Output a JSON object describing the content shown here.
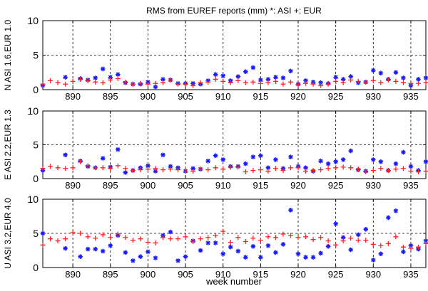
{
  "chart_data": [
    {
      "type": "scatter",
      "title": "RMS  from  EUREF reports (mm)    *: ASI  +: EUR",
      "ylabel": "N  ASI 1.6,EUR 1.0",
      "xlabel": "",
      "xlim": [
        886,
        937
      ],
      "ylim": [
        0,
        10
      ],
      "grid": "dashed",
      "xticks": [
        "890",
        "895",
        "900",
        "905",
        "910",
        "915",
        "920",
        "925",
        "930",
        "935"
      ],
      "yticks": [
        "0",
        "5",
        "10"
      ],
      "series": [
        {
          "name": "ASI",
          "marker": "*",
          "color": "#1a1aff",
          "x": [
            886,
            889,
            891,
            892,
            893,
            894,
            895,
            896,
            897,
            898,
            899,
            900,
            901,
            902,
            903,
            904,
            905,
            906,
            907,
            908,
            909,
            910,
            911,
            912,
            913,
            914,
            915,
            916,
            917,
            918,
            919,
            920,
            921,
            922,
            923,
            924,
            925,
            926,
            927,
            928,
            929,
            930,
            931,
            932,
            933,
            934,
            935,
            936,
            937
          ],
          "y": [
            0.6,
            1.8,
            1.6,
            1.4,
            1.7,
            3.0,
            1.8,
            2.2,
            1.0,
            0.8,
            0.8,
            1.1,
            0.4,
            1.5,
            1.4,
            0.9,
            0.9,
            0.9,
            0.8,
            1.3,
            2.2,
            2.0,
            1.3,
            1.9,
            2.6,
            3.2,
            1.4,
            1.5,
            1.8,
            1.7,
            2.7,
            0.8,
            1.3,
            1.1,
            1.0,
            0.9,
            1.8,
            1.5,
            1.9,
            1.0,
            1.1,
            2.8,
            2.4,
            1.5,
            2.5,
            1.7,
            0.6,
            1.5,
            1.7
          ]
        },
        {
          "name": "EUR",
          "marker": "+",
          "color": "#ff2020",
          "x": [
            886,
            887,
            888,
            889,
            890,
            891,
            892,
            893,
            894,
            895,
            896,
            897,
            898,
            899,
            900,
            901,
            902,
            903,
            904,
            905,
            906,
            907,
            908,
            909,
            910,
            911,
            912,
            913,
            914,
            915,
            916,
            917,
            918,
            919,
            920,
            921,
            922,
            923,
            924,
            925,
            926,
            927,
            928,
            929,
            930,
            931,
            932,
            933,
            934,
            935,
            936,
            937
          ],
          "y": [
            0.8,
            1.3,
            1.0,
            0.8,
            1.2,
            1.5,
            1.3,
            1.1,
            1.0,
            1.4,
            1.6,
            1.1,
            0.8,
            0.9,
            0.8,
            0.9,
            1.0,
            1.4,
            0.8,
            0.8,
            0.6,
            1.0,
            1.1,
            1.5,
            1.2,
            1.0,
            1.3,
            1.0,
            1.1,
            0.9,
            1.0,
            1.2,
            0.8,
            1.1,
            0.7,
            0.9,
            0.8,
            0.6,
            0.8,
            1.2,
            1.0,
            1.4,
            1.2,
            1.1,
            1.3,
            1.0,
            1.4,
            1.2,
            1.0,
            0.9,
            0.9,
            1.0
          ]
        }
      ]
    },
    {
      "type": "scatter",
      "title": "",
      "ylabel": "E  ASI 2.2,EUR 1.3",
      "xlabel": "",
      "xlim": [
        886,
        937
      ],
      "ylim": [
        0,
        10
      ],
      "grid": "dashed",
      "xticks": [
        "890",
        "895",
        "900",
        "905",
        "910",
        "915",
        "920",
        "925",
        "930",
        "935"
      ],
      "yticks": [
        "0",
        "5",
        "10"
      ],
      "series": [
        {
          "name": "ASI",
          "marker": "*",
          "color": "#1a1aff",
          "x": [
            886,
            889,
            891,
            892,
            893,
            894,
            895,
            896,
            897,
            898,
            899,
            900,
            901,
            902,
            903,
            904,
            905,
            906,
            907,
            908,
            909,
            910,
            911,
            912,
            913,
            914,
            915,
            916,
            917,
            918,
            919,
            920,
            921,
            922,
            923,
            924,
            925,
            926,
            927,
            928,
            929,
            930,
            931,
            932,
            933,
            934,
            935,
            936,
            937
          ],
          "y": [
            1.2,
            3.5,
            2.6,
            1.8,
            1.6,
            3.0,
            1.7,
            4.3,
            0.9,
            1.2,
            1.6,
            1.9,
            1.1,
            3.5,
            1.8,
            1.6,
            1.1,
            1.5,
            1.4,
            2.6,
            3.4,
            2.8,
            1.8,
            1.8,
            2.2,
            3.2,
            3.4,
            1.6,
            2.8,
            1.5,
            3.2,
            1.8,
            1.6,
            1.1,
            2.6,
            2.2,
            2.5,
            2.8,
            4.1,
            1.3,
            1.1,
            2.8,
            2.5,
            1.2,
            2.2,
            3.9,
            1.8,
            1.2,
            2.5
          ]
        },
        {
          "name": "EUR",
          "marker": "+",
          "color": "#ff2020",
          "x": [
            886,
            887,
            888,
            889,
            890,
            891,
            892,
            893,
            894,
            895,
            896,
            897,
            898,
            899,
            900,
            901,
            902,
            903,
            904,
            905,
            906,
            907,
            908,
            909,
            910,
            911,
            912,
            913,
            914,
            915,
            916,
            917,
            918,
            919,
            920,
            921,
            922,
            923,
            924,
            925,
            926,
            927,
            928,
            929,
            930,
            931,
            932,
            933,
            934,
            935,
            936,
            937
          ],
          "y": [
            1.5,
            1.8,
            1.6,
            1.5,
            1.6,
            2.5,
            1.9,
            1.6,
            1.6,
            1.5,
            1.9,
            1.5,
            1.2,
            1.3,
            1.4,
            1.5,
            1.3,
            1.4,
            1.3,
            1.1,
            1.1,
            1.4,
            1.3,
            1.6,
            1.4,
            1.7,
            1.7,
            1.0,
            1.2,
            1.3,
            1.1,
            1.5,
            1.2,
            1.6,
            1.6,
            1.1,
            1.2,
            1.3,
            1.5,
            1.6,
            1.7,
            1.6,
            1.4,
            1.0,
            1.2,
            1.5,
            1.2,
            1.4,
            1.5,
            1.1,
            1.0,
            1.1
          ]
        }
      ]
    },
    {
      "type": "scatter",
      "title": "",
      "ylabel": "U  ASI 3.2,EUR 4.0",
      "xlabel": "week number",
      "xlim": [
        886,
        937
      ],
      "ylim": [
        0,
        10
      ],
      "grid": "dashed",
      "xticks": [
        "890",
        "895",
        "900",
        "905",
        "910",
        "915",
        "920",
        "925",
        "930",
        "935"
      ],
      "yticks": [
        "0",
        "5",
        "10"
      ],
      "series": [
        {
          "name": "ASI",
          "marker": "*",
          "color": "#1a1aff",
          "x": [
            886,
            889,
            891,
            892,
            893,
            894,
            895,
            896,
            897,
            898,
            899,
            900,
            901,
            902,
            903,
            904,
            905,
            906,
            907,
            908,
            909,
            910,
            911,
            912,
            913,
            914,
            915,
            916,
            917,
            918,
            919,
            920,
            921,
            922,
            923,
            924,
            925,
            926,
            927,
            928,
            929,
            930,
            931,
            932,
            933,
            934,
            935,
            936,
            937
          ],
          "y": [
            5.0,
            2.8,
            1.6,
            2.7,
            2.7,
            2.4,
            3.2,
            4.7,
            2.2,
            1.0,
            1.6,
            2.3,
            1.4,
            4.7,
            5.2,
            1.0,
            1.6,
            3.9,
            2.5,
            3.6,
            3.6,
            2.0,
            3.0,
            2.4,
            1.5,
            3.1,
            1.5,
            3.2,
            2.2,
            3.4,
            8.4,
            2.0,
            1.5,
            1.5,
            2.1,
            3.1,
            6.4,
            4.4,
            2.6,
            4.8,
            5.6,
            1.1,
            2.0,
            7.3,
            8.3,
            2.3,
            3.2,
            2.7,
            3.9
          ]
        },
        {
          "name": "EUR",
          "marker": "+",
          "color": "#ff2020",
          "x": [
            886,
            887,
            888,
            889,
            890,
            891,
            892,
            893,
            894,
            895,
            896,
            897,
            898,
            899,
            900,
            901,
            902,
            903,
            904,
            905,
            906,
            907,
            908,
            909,
            910,
            911,
            912,
            913,
            914,
            915,
            916,
            917,
            918,
            919,
            920,
            921,
            922,
            923,
            924,
            925,
            926,
            927,
            928,
            929,
            930,
            931,
            932,
            933,
            934,
            935,
            936,
            937
          ],
          "y": [
            3.3,
            4.2,
            3.9,
            4.2,
            5.1,
            5.0,
            4.5,
            4.3,
            4.8,
            4.4,
            4.9,
            4.4,
            4.0,
            4.2,
            3.7,
            3.6,
            4.4,
            4.2,
            4.2,
            4.5,
            3.8,
            4.2,
            4.4,
            4.7,
            5.3,
            3.7,
            4.4,
            3.8,
            4.3,
            4.0,
            4.5,
            4.4,
            4.9,
            4.7,
            4.4,
            4.5,
            4.1,
            4.4,
            3.9,
            3.3,
            3.9,
            4.3,
            4.0,
            4.0,
            3.4,
            3.2,
            3.5,
            4.5,
            3.0,
            2.8,
            3.0,
            3.5
          ]
        }
      ]
    }
  ]
}
